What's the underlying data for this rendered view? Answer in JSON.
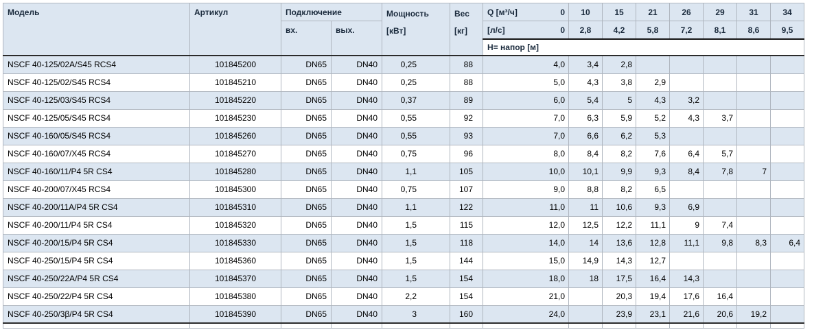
{
  "table": {
    "headers": {
      "model": "Модель",
      "article": "Артикул",
      "connection": "Подключение",
      "conn_in": "вх.",
      "conn_out": "вых.",
      "power_line1": "Мощность",
      "power_line2": "[кВт]",
      "weight_line1": "Вес",
      "weight_line2": "[кг]",
      "q_m3h_label": "Q [м³/ч]",
      "q_m3h_zero": "0",
      "q_ls_label": "[л/с]",
      "q_ls_zero": "0",
      "head_row_label": "Н= напор [м]",
      "flow_m3h": [
        "10",
        "15",
        "21",
        "26",
        "29",
        "31",
        "34"
      ],
      "flow_ls": [
        "2,8",
        "4,2",
        "5,8",
        "7,2",
        "8,1",
        "8,6",
        "9,5"
      ]
    },
    "rows": [
      {
        "model": "NSCF 40-125/02A/S45 RCS4",
        "article": "101845200",
        "conn_in": "DN65",
        "conn_out": "DN40",
        "power": "0,25",
        "weight": "88",
        "h0": "4,0",
        "h": [
          "3,4",
          "2,8",
          "",
          "",
          "",
          "",
          ""
        ]
      },
      {
        "model": "NSCF 40-125/02/S45 RCS4",
        "article": "101845210",
        "conn_in": "DN65",
        "conn_out": "DN40",
        "power": "0,25",
        "weight": "88",
        "h0": "5,0",
        "h": [
          "4,3",
          "3,8",
          "2,9",
          "",
          "",
          "",
          ""
        ]
      },
      {
        "model": "NSCF 40-125/03/S45 RCS4",
        "article": "101845220",
        "conn_in": "DN65",
        "conn_out": "DN40",
        "power": "0,37",
        "weight": "89",
        "h0": "6,0",
        "h": [
          "5,4",
          "5",
          "4,3",
          "3,2",
          "",
          "",
          ""
        ]
      },
      {
        "model": "NSCF 40-125/05/S45 RCS4",
        "article": "101845230",
        "conn_in": "DN65",
        "conn_out": "DN40",
        "power": "0,55",
        "weight": "92",
        "h0": "7,0",
        "h": [
          "6,3",
          "5,9",
          "5,2",
          "4,3",
          "3,7",
          "",
          ""
        ]
      },
      {
        "model": "NSCF 40-160/05/S45 RCS4",
        "article": "101845260",
        "conn_in": "DN65",
        "conn_out": "DN40",
        "power": "0,55",
        "weight": "93",
        "h0": "7,0",
        "h": [
          "6,6",
          "6,2",
          "5,3",
          "",
          "",
          "",
          ""
        ]
      },
      {
        "model": "NSCF 40-160/07/X45 RCS4",
        "article": "101845270",
        "conn_in": "DN65",
        "conn_out": "DN40",
        "power": "0,75",
        "weight": "96",
        "h0": "8,0",
        "h": [
          "8,4",
          "8,2",
          "7,6",
          "6,4",
          "5,7",
          "",
          ""
        ]
      },
      {
        "model": "NSCF 40-160/11/P4 5R CS4",
        "article": "101845280",
        "conn_in": "DN65",
        "conn_out": "DN40",
        "power": "1,1",
        "weight": "105",
        "h0": "10,0",
        "h": [
          "10,1",
          "9,9",
          "9,3",
          "8,4",
          "7,8",
          "7",
          ""
        ]
      },
      {
        "model": "NSCF 40-200/07/X45 RCS4",
        "article": "101845300",
        "conn_in": "DN65",
        "conn_out": "DN40",
        "power": "0,75",
        "weight": "107",
        "h0": "9,0",
        "h": [
          "8,8",
          "8,2",
          "6,5",
          "",
          "",
          "",
          ""
        ]
      },
      {
        "model": "NSCF 40-200/11A/P4 5R CS4",
        "article": "101845310",
        "conn_in": "DN65",
        "conn_out": "DN40",
        "power": "1,1",
        "weight": "122",
        "h0": "11,0",
        "h": [
          "11",
          "10,6",
          "9,3",
          "6,9",
          "",
          "",
          ""
        ]
      },
      {
        "model": "NSCF 40-200/11/P4 5R CS4",
        "article": "101845320",
        "conn_in": "DN65",
        "conn_out": "DN40",
        "power": "1,5",
        "weight": "115",
        "h0": "12,0",
        "h": [
          "12,5",
          "12,2",
          "11,1",
          "9",
          "7,4",
          "",
          ""
        ]
      },
      {
        "model": "NSCF 40-200/15/P4 5R CS4",
        "article": "101845330",
        "conn_in": "DN65",
        "conn_out": "DN40",
        "power": "1,5",
        "weight": "118",
        "h0": "14,0",
        "h": [
          "14",
          "13,6",
          "12,8",
          "11,1",
          "9,8",
          "8,3",
          "6,4"
        ]
      },
      {
        "model": "NSCF 40-250/15/P4 5R CS4",
        "article": "101845360",
        "conn_in": "DN65",
        "conn_out": "DN40",
        "power": "1,5",
        "weight": "144",
        "h0": "15,0",
        "h": [
          "14,9",
          "14,3",
          "12,7",
          "",
          "",
          "",
          ""
        ]
      },
      {
        "model": "NSCF 40-250/22A/P4 5R CS4",
        "article": "101845370",
        "conn_in": "DN65",
        "conn_out": "DN40",
        "power": "1,5",
        "weight": "154",
        "h0": "18,0",
        "h": [
          "18",
          "17,5",
          "16,4",
          "14,3",
          "",
          "",
          ""
        ]
      },
      {
        "model": "NSCF 40-250/22/P4 5R CS4",
        "article": "101845380",
        "conn_in": "DN65",
        "conn_out": "DN40",
        "power": "2,2",
        "weight": "154",
        "h0": "21,0",
        "h": [
          "",
          "20,3",
          "19,4",
          "17,6",
          "16,4",
          "",
          ""
        ]
      },
      {
        "model": "NSCF 40-250/3β/P4 5R CS4",
        "article": "101845390",
        "conn_in": "DN65",
        "conn_out": "DN40",
        "power": "3",
        "weight": "160",
        "h0": "24,0",
        "h": [
          "",
          "23,9",
          "23,1",
          "21,6",
          "20,6",
          "19,2",
          ""
        ]
      }
    ]
  },
  "colors": {
    "stripe_blue": "#dce6f1",
    "header_bg": "#dce6f1",
    "grid_line": "#aeb5be",
    "dark_rule": "#2b2b2b"
  }
}
